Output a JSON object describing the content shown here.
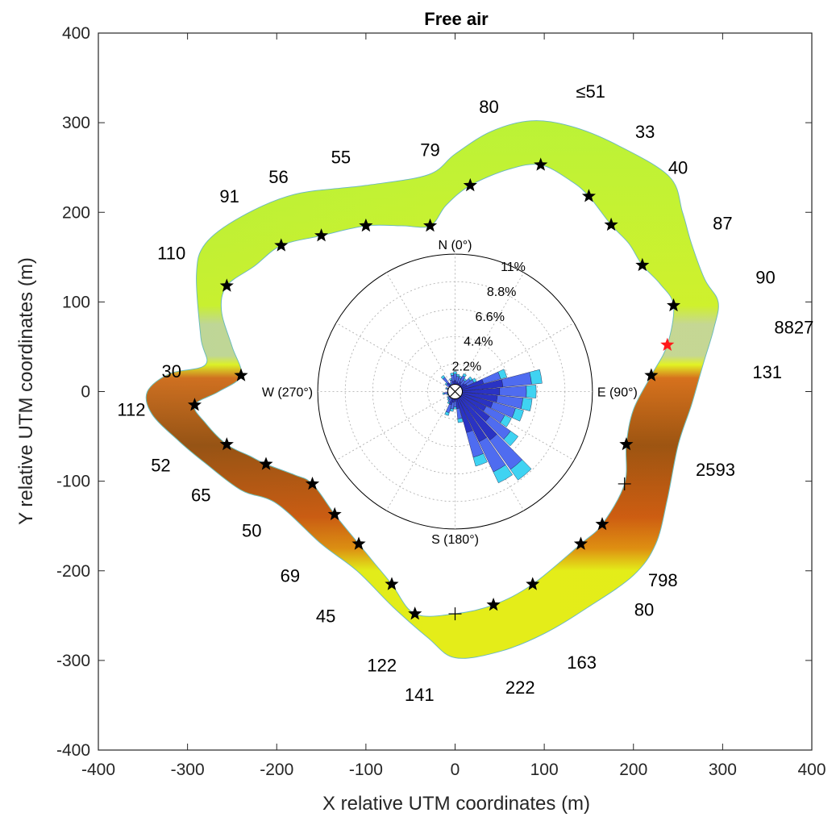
{
  "chart_data": {
    "type": "scatter",
    "title": "Free air",
    "xlabel": "X relative UTM coordinates (m)",
    "ylabel": "Y relative UTM coordinates (m)",
    "xlim": [
      -400,
      400
    ],
    "ylim": [
      -400,
      400
    ],
    "xticks": [
      "-400",
      "-300",
      "-200",
      "-100",
      "0",
      "100",
      "200",
      "300",
      "400"
    ],
    "yticks": [
      "-400",
      "-300",
      "-200",
      "-100",
      "0",
      "100",
      "200",
      "300",
      "400"
    ],
    "grid": false,
    "outer_boundary": [
      [
        240,
        240
      ],
      [
        180,
        276
      ],
      [
        130,
        296
      ],
      [
        85,
        302
      ],
      [
        40,
        290
      ],
      [
        0,
        265
      ],
      [
        -30,
        242
      ],
      [
        -100,
        230
      ],
      [
        -180,
        220
      ],
      [
        -240,
        195
      ],
      [
        -280,
        165
      ],
      [
        -290,
        130
      ],
      [
        -285,
        60
      ],
      [
        -280,
        30
      ],
      [
        -320,
        20
      ],
      [
        -345,
        0
      ],
      [
        -340,
        -25
      ],
      [
        -310,
        -55
      ],
      [
        -280,
        -80
      ],
      [
        -240,
        -110
      ],
      [
        -200,
        -125
      ],
      [
        -150,
        -170
      ],
      [
        -110,
        -200
      ],
      [
        -70,
        -240
      ],
      [
        -30,
        -275
      ],
      [
        0,
        -297
      ],
      [
        50,
        -290
      ],
      [
        100,
        -270
      ],
      [
        150,
        -240
      ],
      [
        200,
        -205
      ],
      [
        225,
        -170
      ],
      [
        238,
        -120
      ],
      [
        250,
        -60
      ],
      [
        265,
        -15
      ],
      [
        278,
        30
      ],
      [
        290,
        70
      ],
      [
        295,
        100
      ],
      [
        280,
        125
      ],
      [
        265,
        165
      ],
      [
        255,
        200
      ]
    ],
    "inner_boundary": [
      [
        245,
        96
      ],
      [
        230,
        120
      ],
      [
        210,
        141
      ],
      [
        195,
        165
      ],
      [
        175,
        186
      ],
      [
        150,
        218
      ],
      [
        130,
        235
      ],
      [
        96,
        253
      ],
      [
        60,
        248
      ],
      [
        17,
        230
      ],
      [
        -10,
        208
      ],
      [
        -28,
        185
      ],
      [
        -60,
        185
      ],
      [
        -100,
        185
      ],
      [
        -150,
        174
      ],
      [
        -195,
        163
      ],
      [
        -225,
        140
      ],
      [
        -256,
        118
      ],
      [
        -262,
        90
      ],
      [
        -250,
        50
      ],
      [
        -240,
        18
      ],
      [
        -265,
        0
      ],
      [
        -292,
        -15
      ],
      [
        -280,
        -35
      ],
      [
        -256,
        -59
      ],
      [
        -230,
        -72
      ],
      [
        -212,
        -81
      ],
      [
        -180,
        -93
      ],
      [
        -160,
        -103
      ],
      [
        -135,
        -137
      ],
      [
        -108,
        -170
      ],
      [
        -90,
        -192
      ],
      [
        -71,
        -215
      ],
      [
        -45,
        -248
      ],
      [
        0,
        -248
      ],
      [
        43,
        -238
      ],
      [
        87,
        -215
      ],
      [
        141,
        -170
      ],
      [
        165,
        -148
      ],
      [
        190,
        -103
      ],
      [
        192,
        -59
      ],
      [
        200,
        -20
      ],
      [
        220,
        18
      ],
      [
        238,
        52
      ]
    ],
    "stars": [
      [
        96,
        253
      ],
      [
        17,
        230
      ],
      [
        -28,
        185
      ],
      [
        -100,
        185
      ],
      [
        -150,
        174
      ],
      [
        -195,
        163
      ],
      [
        -256,
        118
      ],
      [
        -240,
        18
      ],
      [
        -292,
        -15
      ],
      [
        -256,
        -59
      ],
      [
        -212,
        -81
      ],
      [
        -160,
        -103
      ],
      [
        -135,
        -137
      ],
      [
        -108,
        -170
      ],
      [
        -71,
        -215
      ],
      [
        -45,
        -248
      ],
      [
        43,
        -238
      ],
      [
        87,
        -215
      ],
      [
        141,
        -170
      ],
      [
        165,
        -148
      ],
      [
        192,
        -59
      ],
      [
        220,
        18
      ],
      [
        245,
        96
      ],
      [
        210,
        141
      ],
      [
        175,
        186
      ],
      [
        150,
        218
      ]
    ],
    "red_star": [
      238,
      52
    ],
    "crosses": [
      [
        0,
        -248
      ],
      [
        190,
        -103
      ]
    ],
    "annotations": [
      {
        "text": "≤51",
        "x": 152,
        "y": 335
      },
      {
        "text": "80",
        "x": 38,
        "y": 318
      },
      {
        "text": "33",
        "x": 213,
        "y": 290
      },
      {
        "text": "40",
        "x": 250,
        "y": 250
      },
      {
        "text": "79",
        "x": -28,
        "y": 270
      },
      {
        "text": "55",
        "x": -128,
        "y": 262
      },
      {
        "text": "56",
        "x": -198,
        "y": 240
      },
      {
        "text": "91",
        "x": -253,
        "y": 218
      },
      {
        "text": "87",
        "x": 300,
        "y": 188
      },
      {
        "text": "110",
        "x": -318,
        "y": 155
      },
      {
        "text": "90",
        "x": 348,
        "y": 128
      },
      {
        "text": "8827",
        "x": 380,
        "y": 72
      },
      {
        "text": "131",
        "x": 350,
        "y": 22
      },
      {
        "text": "30",
        "x": -318,
        "y": 23
      },
      {
        "text": "112",
        "x": -363,
        "y": -20
      },
      {
        "text": "52",
        "x": -330,
        "y": -82
      },
      {
        "text": "65",
        "x": -285,
        "y": -115
      },
      {
        "text": "2593",
        "x": 292,
        "y": -87
      },
      {
        "text": "50",
        "x": -228,
        "y": -155
      },
      {
        "text": "69",
        "x": -185,
        "y": -205
      },
      {
        "text": "798",
        "x": 233,
        "y": -210
      },
      {
        "text": "80",
        "x": 212,
        "y": -243
      },
      {
        "text": "45",
        "x": -145,
        "y": -250
      },
      {
        "text": "122",
        "x": -82,
        "y": -305
      },
      {
        "text": "163",
        "x": 142,
        "y": -302
      },
      {
        "text": "222",
        "x": 73,
        "y": -330
      },
      {
        "text": "141",
        "x": -40,
        "y": -338
      }
    ],
    "color_stops": [
      {
        "y": 300,
        "color": "#b9f33a"
      },
      {
        "y": 96,
        "color": "#d7f02a"
      },
      {
        "y": 75,
        "color": "#c8c8c8"
      },
      {
        "y": 40,
        "color": "#c8c8c8"
      },
      {
        "y": 30,
        "color": "#f4f21c"
      },
      {
        "y": 15,
        "color": "#e22c12"
      },
      {
        "y": -60,
        "color": "#8a0000"
      },
      {
        "y": -140,
        "color": "#d40d00"
      },
      {
        "y": -175,
        "color": "#ee5a00"
      },
      {
        "y": -200,
        "color": "#f6ea0c"
      }
    ],
    "wind_rose": {
      "center": [
        0,
        0
      ],
      "direction_labels": [
        "N (0°)",
        "E (90°)",
        "S (180°)",
        "W (270°)"
      ],
      "ring_labels": [
        "2.2%",
        "4.4%",
        "6.6%",
        "8.8%",
        "11%"
      ],
      "ring_max_percent": 11,
      "radius_data": 154,
      "sector_width_deg": 10,
      "petals": [
        {
          "dir": 0,
          "value": 1.6
        },
        {
          "dir": 10,
          "value": 1.4
        },
        {
          "dir": 20,
          "value": 1.3
        },
        {
          "dir": 30,
          "value": 1.6
        },
        {
          "dir": 40,
          "value": 1.3
        },
        {
          "dir": 50,
          "value": 1.7
        },
        {
          "dir": 60,
          "value": 1.9
        },
        {
          "dir": 70,
          "value": 4.3
        },
        {
          "dir": 80,
          "value": 7.0
        },
        {
          "dir": 90,
          "value": 6.5
        },
        {
          "dir": 100,
          "value": 6.2
        },
        {
          "dir": 110,
          "value": 5.7
        },
        {
          "dir": 120,
          "value": 5.0
        },
        {
          "dir": 130,
          "value": 6.2
        },
        {
          "dir": 140,
          "value": 8.7
        },
        {
          "dir": 150,
          "value": 8.1
        },
        {
          "dir": 160,
          "value": 6.2
        },
        {
          "dir": 170,
          "value": 2.5
        },
        {
          "dir": 180,
          "value": 1.4
        },
        {
          "dir": 190,
          "value": 1.6
        },
        {
          "dir": 200,
          "value": 2.0
        },
        {
          "dir": 210,
          "value": 1.1
        },
        {
          "dir": 220,
          "value": 0.9
        },
        {
          "dir": 230,
          "value": 0.8
        },
        {
          "dir": 240,
          "value": 0.6
        },
        {
          "dir": 250,
          "value": 0.7
        },
        {
          "dir": 260,
          "value": 1.0
        },
        {
          "dir": 270,
          "value": 0.6
        },
        {
          "dir": 280,
          "value": 0.6
        },
        {
          "dir": 290,
          "value": 0.8
        },
        {
          "dir": 300,
          "value": 0.6
        },
        {
          "dir": 310,
          "value": 1.0
        },
        {
          "dir": 320,
          "value": 1.6
        },
        {
          "dir": 330,
          "value": 0.8
        },
        {
          "dir": 340,
          "value": 1.1
        },
        {
          "dir": 350,
          "value": 1.5
        }
      ],
      "colors": {
        "inner": "#2a33c4",
        "mid": "#4f6cf0",
        "outer": "#3fd3f2",
        "tip": "#8ff08a",
        "center_band": "#555555"
      }
    }
  }
}
